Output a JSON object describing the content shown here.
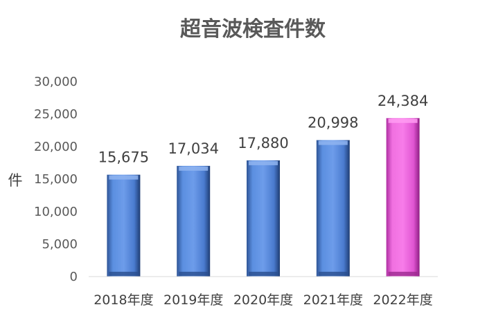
{
  "chart_data": {
    "type": "bar",
    "title": "超音波検査件数",
    "ylabel": "件",
    "xlabel": "",
    "categories": [
      "2018年度",
      "2019年度",
      "2020年度",
      "2021年度",
      "2022年度"
    ],
    "values": [
      15675,
      17034,
      17880,
      20998,
      24384
    ],
    "data_labels": [
      "15,675",
      "17,034",
      "17,880",
      "20,998",
      "24,384"
    ],
    "ylim": [
      0,
      30000
    ],
    "yticks": [
      0,
      5000,
      10000,
      15000,
      20000,
      25000,
      30000
    ],
    "ytick_labels": [
      "0",
      "5,000",
      "10,000",
      "15,000",
      "20,000",
      "25,000",
      "30,000"
    ],
    "grid": false,
    "legend": "none",
    "colors": {
      "bar": "#4f81d6",
      "highlight_bar": "#e957d6"
    },
    "highlight_index": 4
  }
}
